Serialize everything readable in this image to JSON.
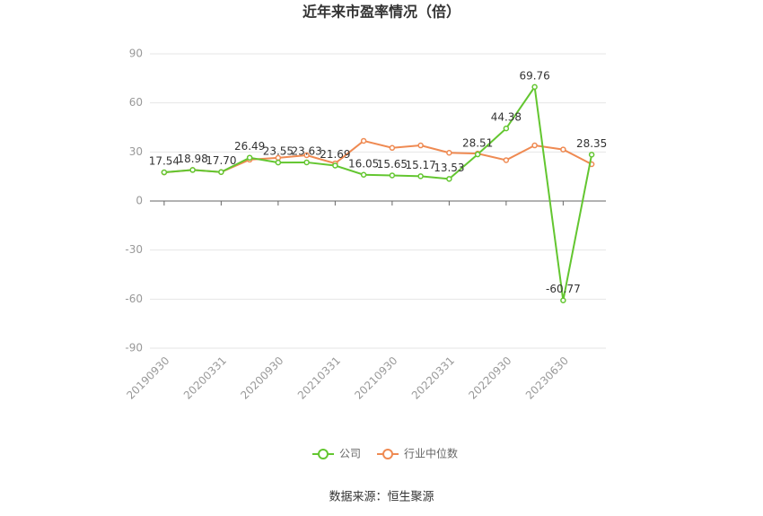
{
  "chart_data": {
    "type": "line",
    "title": "近年来市盈率情况（倍）",
    "categories": [
      "20190930",
      null,
      "20200331",
      null,
      "20200930",
      null,
      "20210331",
      null,
      "20210930",
      null,
      "20220331",
      null,
      "20220930",
      null,
      "20230630",
      null
    ],
    "series": [
      {
        "name": "公司",
        "color": "#63c630",
        "values": [
          17.54,
          18.98,
          17.7,
          26.49,
          23.55,
          23.63,
          21.69,
          16.05,
          15.65,
          15.17,
          13.53,
          28.51,
          44.38,
          69.76,
          -60.77,
          28.35
        ],
        "value_labels": [
          "17.54",
          "18.98",
          "17.70",
          "26.49",
          "23.55",
          "23.63",
          "21.69",
          "16.05",
          "15.65",
          "15.17",
          "13.53",
          "28.51",
          "44.38",
          "69.76",
          "-60.77",
          "28.35"
        ]
      },
      {
        "name": "行业中位数",
        "color": "#ef8a52",
        "values": [
          17.5,
          19,
          17.7,
          25.3,
          26.4,
          28,
          23,
          36.8,
          32.5,
          34,
          29.5,
          29,
          25,
          34,
          31.5,
          22.5
        ]
      }
    ],
    "ylim": [
      -90,
      90
    ],
    "yticks": [
      -90,
      -60,
      -30,
      0,
      30,
      60,
      90
    ],
    "grid": true,
    "legend": "bottom",
    "source": "数据来源：恒生聚源"
  }
}
